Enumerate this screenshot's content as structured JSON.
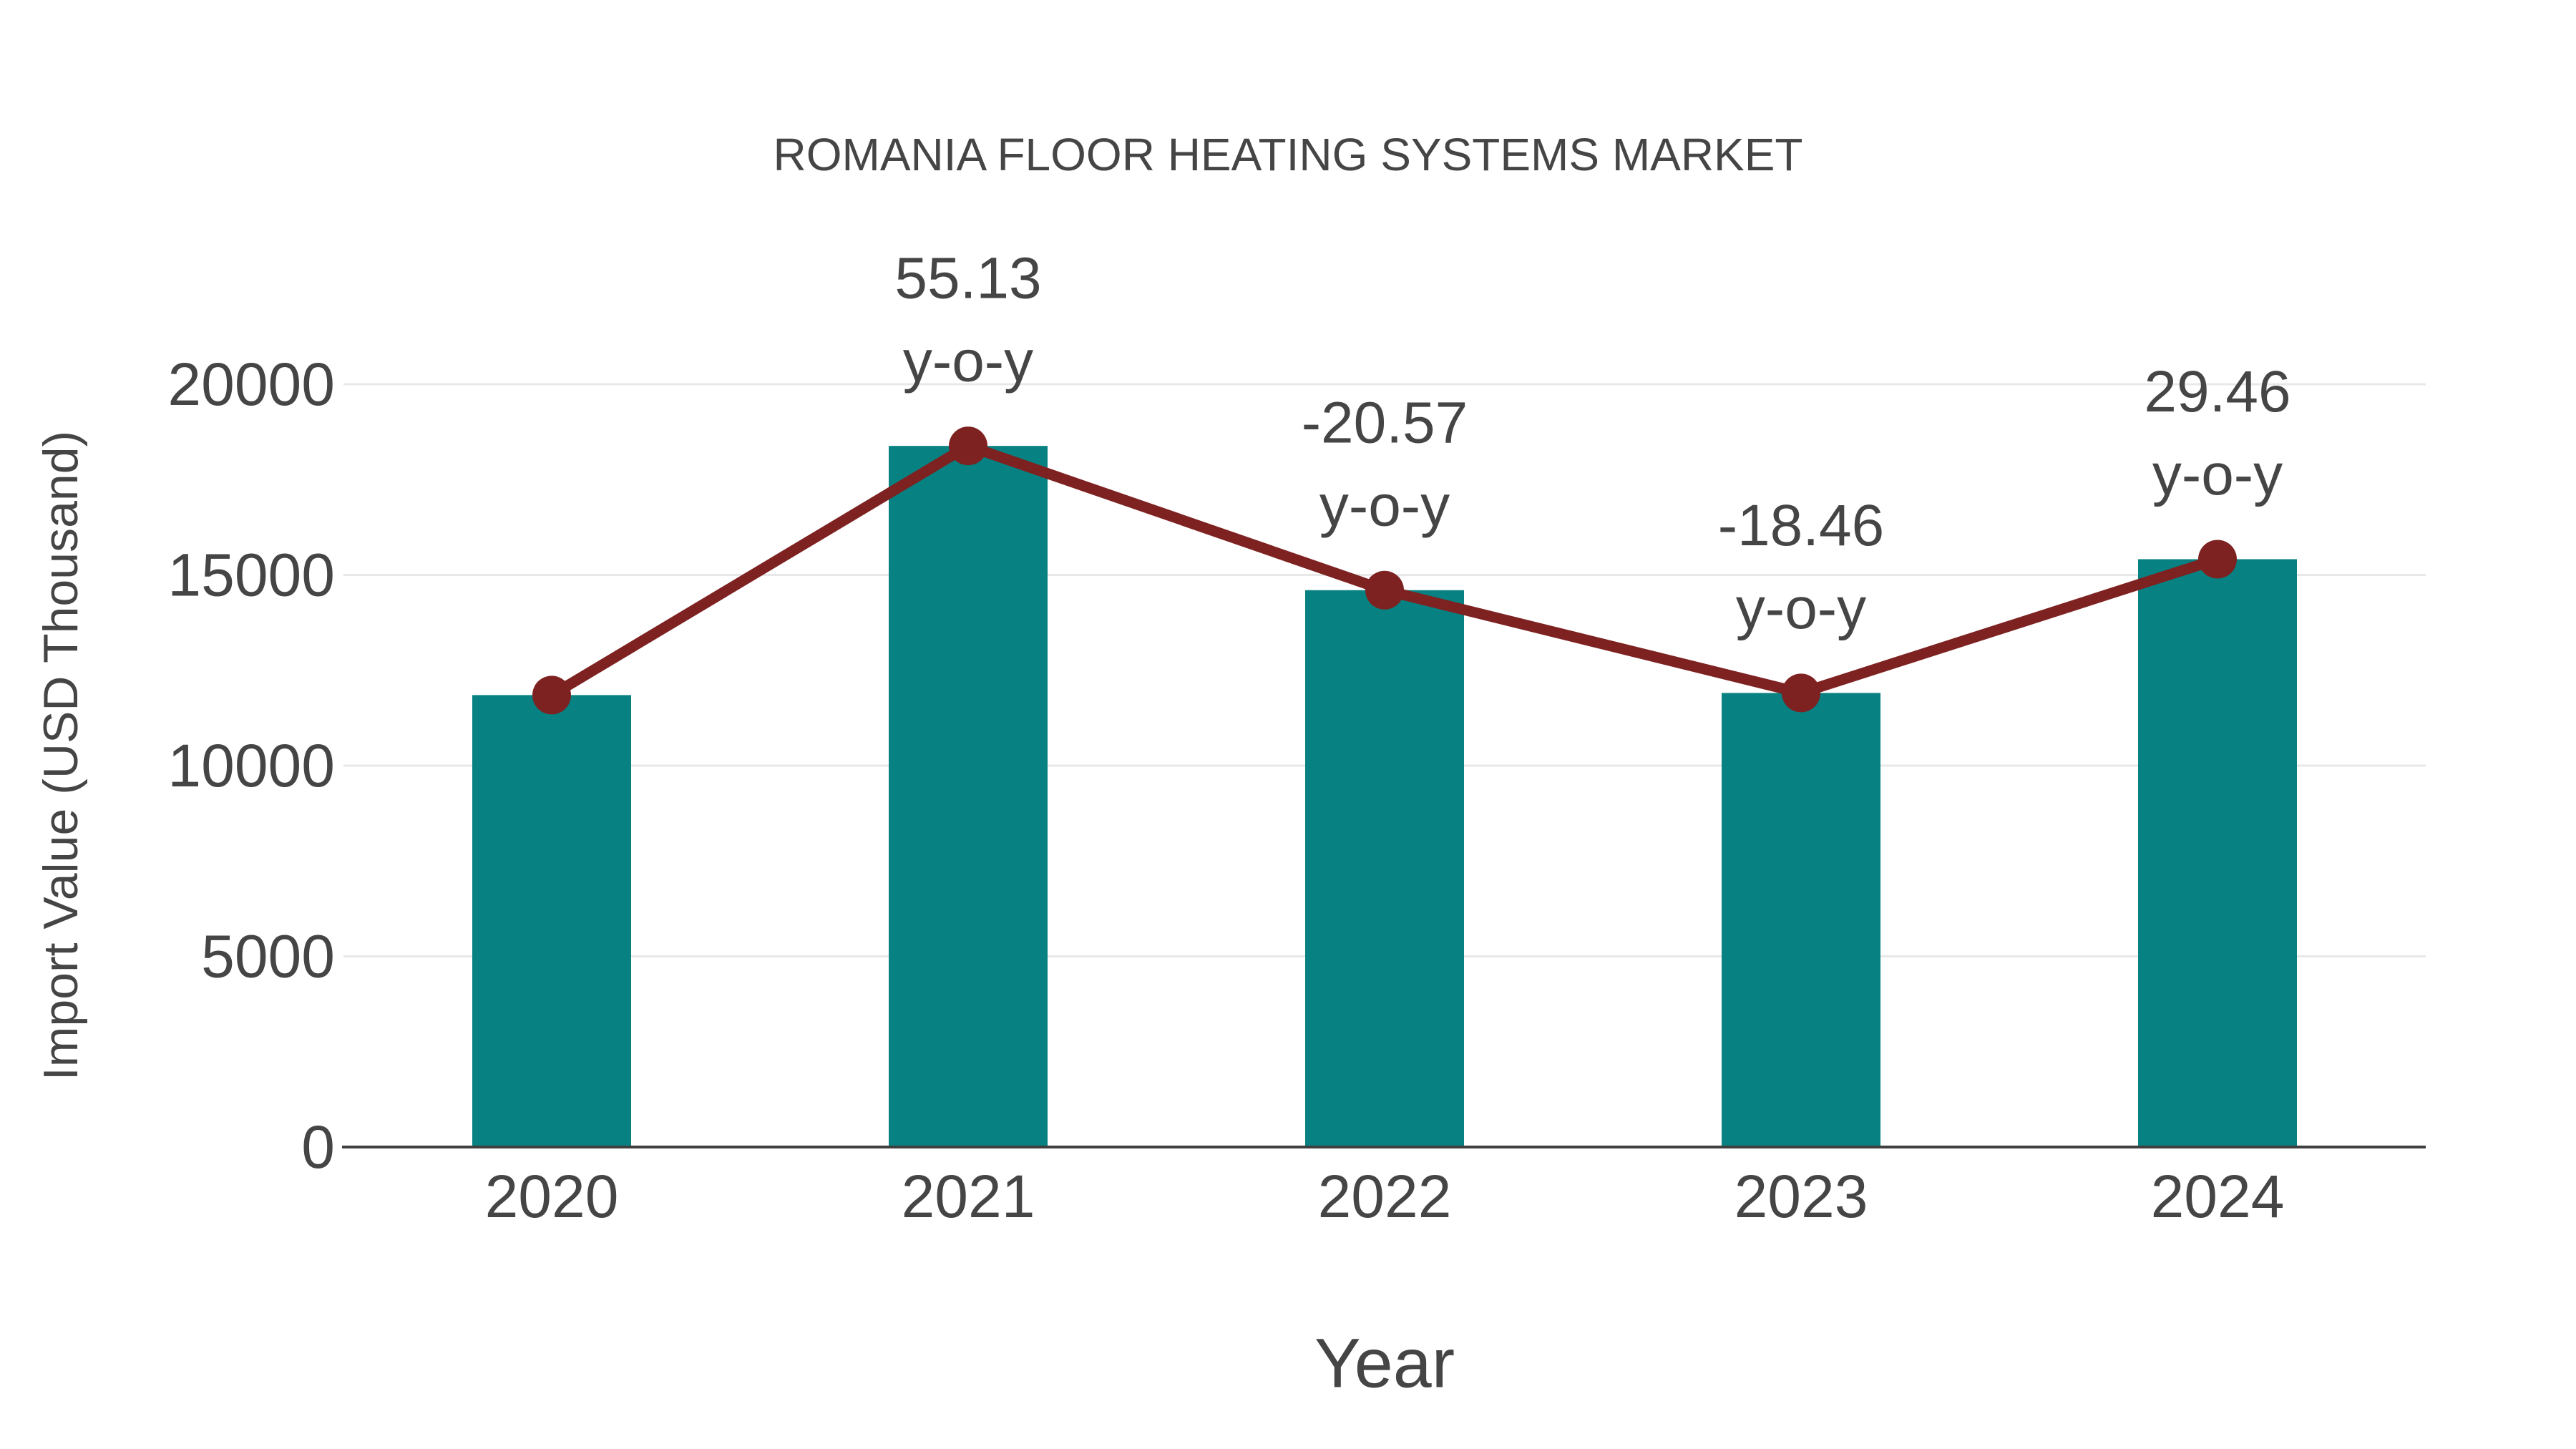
{
  "page": {
    "background": "#ffffff",
    "text_color": "#454545"
  },
  "chart_data": {
    "type": "bar",
    "title": "ROMANIA FLOOR HEATING SYSTEMS MARKET",
    "xlabel": "Year",
    "ylabel": "Import Value (USD Thousand)",
    "categories": [
      "2020",
      "2021",
      "2022",
      "2023",
      "2024"
    ],
    "series": [
      {
        "name": "Import Value (USD Thousand)",
        "type": "bar",
        "color": "#078181",
        "values": [
          11850,
          18383,
          14601,
          11906,
          15413
        ]
      },
      {
        "name": "y-o-y trend line",
        "type": "line",
        "color": "#7E2121",
        "marker_color": "#7E2121",
        "values": [
          11850,
          18383,
          14601,
          11906,
          15413
        ]
      }
    ],
    "annotations": [
      {
        "category": "2021",
        "value": 55.13,
        "value_label": "55.13",
        "suffix_label": "y-o-y"
      },
      {
        "category": "2022",
        "value": -20.57,
        "value_label": "-20.57",
        "suffix_label": "y-o-y"
      },
      {
        "category": "2023",
        "value": -18.46,
        "value_label": "-18.46",
        "suffix_label": "y-o-y"
      },
      {
        "category": "2024",
        "value": 29.46,
        "value_label": "29.46",
        "suffix_label": "y-o-y"
      }
    ],
    "y_ticks": [
      0,
      5000,
      10000,
      15000,
      20000
    ],
    "ylim": [
      0,
      20000
    ],
    "grid": true,
    "legend": false,
    "grid_color": "#e8e8e8",
    "axis_line_color": "#3f3f3f"
  }
}
